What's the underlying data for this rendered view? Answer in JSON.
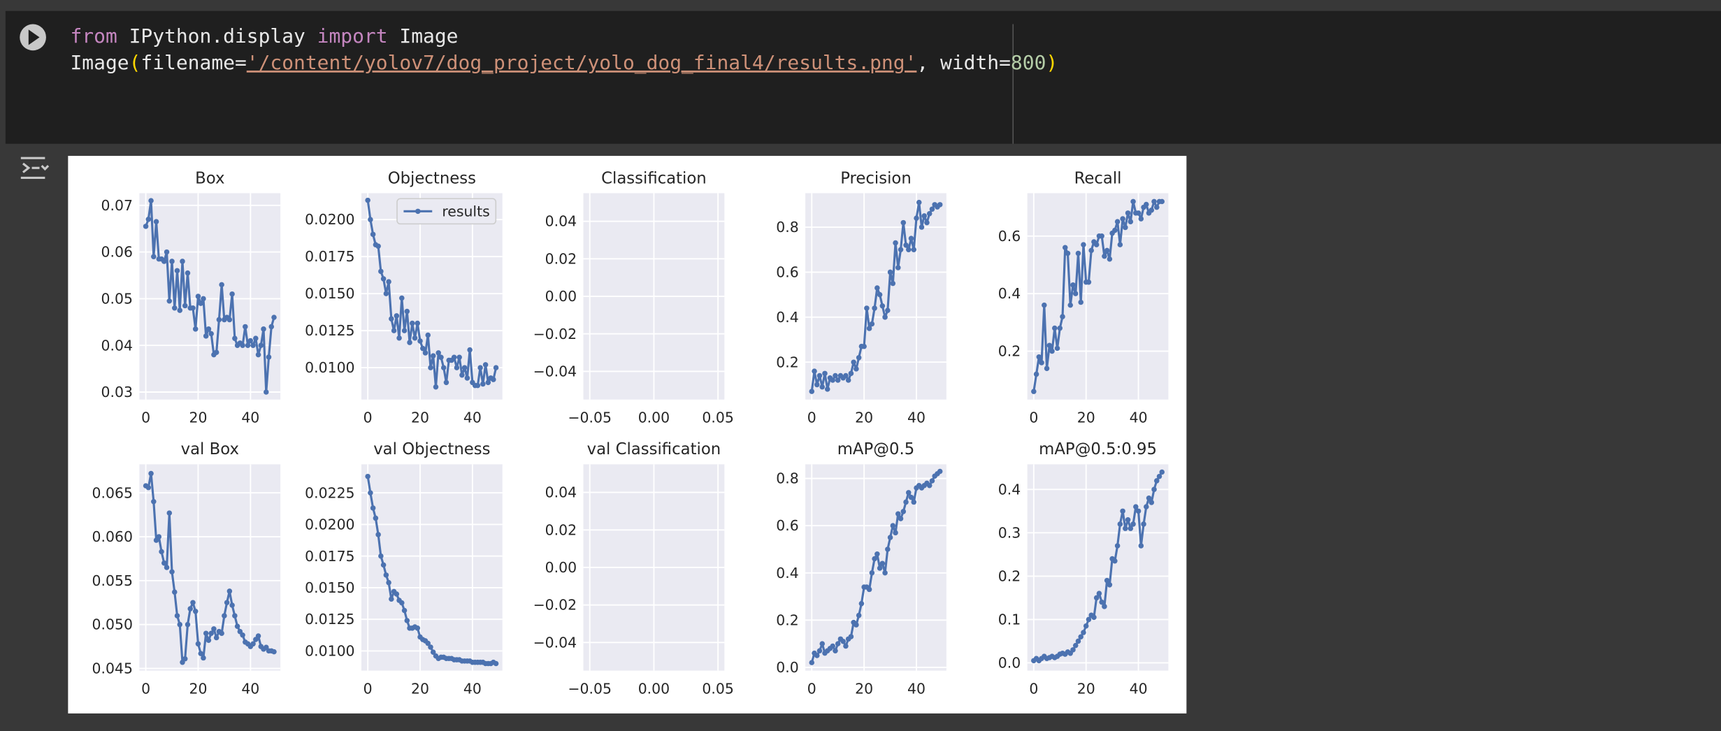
{
  "cell": {
    "code": [
      [
        "from",
        " IPython.display ",
        "import",
        " Image"
      ],
      [
        "Image",
        "(",
        "filename=",
        "'/content/yolov7/dog_project/yolo_dog_final4/results.png'",
        ", width=",
        "800",
        ")"
      ]
    ]
  },
  "chart_data": [
    {
      "type": "line",
      "title": "Box",
      "color": "#4c72b0",
      "grid": true,
      "x": [
        0,
        1,
        2,
        3,
        4,
        5,
        6,
        7,
        8,
        9,
        10,
        11,
        12,
        13,
        14,
        15,
        16,
        17,
        18,
        19,
        20,
        21,
        22,
        23,
        24,
        25,
        26,
        27,
        28,
        29,
        30,
        31,
        32,
        33,
        34,
        35,
        36,
        37,
        38,
        39,
        40,
        41,
        42,
        43,
        44,
        45,
        46,
        47,
        48,
        49
      ],
      "values": [
        0.0655,
        0.067,
        0.071,
        0.059,
        0.0665,
        0.0585,
        0.0585,
        0.058,
        0.06,
        0.0495,
        0.058,
        0.048,
        0.056,
        0.0475,
        0.058,
        0.0485,
        0.0555,
        0.048,
        0.048,
        0.0435,
        0.0505,
        0.049,
        0.05,
        0.042,
        0.0435,
        0.0425,
        0.038,
        0.0385,
        0.0455,
        0.053,
        0.0455,
        0.046,
        0.0455,
        0.051,
        0.0415,
        0.04,
        0.0405,
        0.04,
        0.044,
        0.04,
        0.041,
        0.04,
        0.0415,
        0.038,
        0.04,
        0.0435,
        0.03,
        0.0375,
        0.044,
        0.046
      ],
      "xlim": [
        -2.45,
        51.45
      ],
      "xticks": [
        0,
        20,
        40
      ],
      "ylim": [
        0.0284,
        0.0726
      ],
      "yticks": [
        0.03,
        0.04,
        0.05,
        0.06,
        0.07
      ]
    },
    {
      "type": "line",
      "title": "Objectness",
      "color": "#4c72b0",
      "grid": true,
      "legend": {
        "label": "results",
        "loc": "upper right"
      },
      "x": [
        0,
        1,
        2,
        3,
        4,
        5,
        6,
        7,
        8,
        9,
        10,
        11,
        12,
        13,
        14,
        15,
        16,
        17,
        18,
        19,
        20,
        21,
        22,
        23,
        24,
        25,
        26,
        27,
        28,
        29,
        30,
        31,
        32,
        33,
        34,
        35,
        36,
        37,
        38,
        39,
        40,
        41,
        42,
        43,
        44,
        45,
        46,
        47,
        48,
        49
      ],
      "values": [
        0.0213,
        0.02,
        0.019,
        0.0183,
        0.0182,
        0.0165,
        0.016,
        0.015,
        0.0158,
        0.0133,
        0.0125,
        0.0135,
        0.012,
        0.0147,
        0.0125,
        0.0138,
        0.0117,
        0.013,
        0.012,
        0.013,
        0.0118,
        0.0113,
        0.011,
        0.0122,
        0.01,
        0.0108,
        0.0087,
        0.011,
        0.0107,
        0.01,
        0.009,
        0.0105,
        0.0105,
        0.0107,
        0.01,
        0.0107,
        0.0095,
        0.01,
        0.0093,
        0.0112,
        0.009,
        0.0088,
        0.0088,
        0.01,
        0.0089,
        0.0102,
        0.009,
        0.0093,
        0.0092,
        0.01
      ],
      "xlim": [
        -2.45,
        51.45
      ],
      "xticks": [
        0,
        20,
        40
      ],
      "ylim": [
        0.00785,
        0.02178
      ],
      "yticks": [
        {
          "value": 0.01,
          "label": "0.0100"
        },
        0.0125,
        {
          "value": 0.015,
          "label": "0.0150"
        },
        0.0175,
        {
          "value": 0.02,
          "label": "0.0200"
        }
      ]
    },
    {
      "type": "line",
      "title": "Classification",
      "color": "#4c72b0",
      "grid": true,
      "xlim": [
        -0.055,
        0.055
      ],
      "xticks": [
        {
          "value": -0.05,
          "label": "−0.05"
        },
        {
          "value": 0,
          "label": "0.00"
        },
        0.05
      ],
      "ylim": [
        -0.055,
        0.055
      ],
      "yticks": [
        {
          "value": -0.04,
          "label": "−0.04"
        },
        {
          "value": -0.02,
          "label": "−0.02"
        },
        {
          "value": 0,
          "label": "0.00"
        },
        0.02,
        0.04
      ]
    },
    {
      "type": "line",
      "title": "Precision",
      "color": "#4c72b0",
      "grid": true,
      "x": [
        0,
        1,
        2,
        3,
        4,
        5,
        6,
        7,
        8,
        9,
        10,
        11,
        12,
        13,
        14,
        15,
        16,
        17,
        18,
        19,
        20,
        21,
        22,
        23,
        24,
        25,
        26,
        27,
        28,
        29,
        30,
        31,
        32,
        33,
        34,
        35,
        36,
        37,
        38,
        39,
        40,
        41,
        42,
        43,
        44,
        45,
        46,
        47,
        48,
        49
      ],
      "values": [
        0.07,
        0.16,
        0.1,
        0.14,
        0.09,
        0.15,
        0.08,
        0.13,
        0.12,
        0.14,
        0.12,
        0.14,
        0.13,
        0.14,
        0.12,
        0.15,
        0.2,
        0.17,
        0.22,
        0.27,
        0.27,
        0.44,
        0.35,
        0.37,
        0.44,
        0.53,
        0.5,
        0.45,
        0.4,
        0.43,
        0.6,
        0.55,
        0.73,
        0.62,
        0.7,
        0.82,
        0.72,
        0.7,
        0.75,
        0.7,
        0.84,
        0.91,
        0.8,
        0.85,
        0.82,
        0.86,
        0.88,
        0.9,
        0.89,
        0.9
      ],
      "xlim": [
        -2.45,
        51.45
      ],
      "xticks": [
        0,
        20,
        40
      ],
      "ylim": [
        0.034,
        0.951
      ],
      "yticks": [
        0.2,
        0.4,
        0.6,
        0.8
      ]
    },
    {
      "type": "line",
      "title": "Recall",
      "color": "#4c72b0",
      "grid": true,
      "x": [
        0,
        1,
        2,
        3,
        4,
        5,
        6,
        7,
        8,
        9,
        10,
        11,
        12,
        13,
        14,
        15,
        16,
        17,
        18,
        19,
        20,
        21,
        22,
        23,
        24,
        25,
        26,
        27,
        28,
        29,
        30,
        31,
        32,
        33,
        34,
        35,
        36,
        37,
        38,
        39,
        40,
        41,
        42,
        43,
        44,
        45,
        46,
        47,
        48,
        49
      ],
      "values": [
        0.06,
        0.12,
        0.18,
        0.16,
        0.36,
        0.14,
        0.22,
        0.2,
        0.28,
        0.21,
        0.28,
        0.32,
        0.56,
        0.54,
        0.36,
        0.43,
        0.4,
        0.54,
        0.37,
        0.57,
        0.44,
        0.44,
        0.55,
        0.58,
        0.57,
        0.6,
        0.6,
        0.53,
        0.55,
        0.52,
        0.61,
        0.62,
        0.65,
        0.57,
        0.66,
        0.63,
        0.68,
        0.65,
        0.72,
        0.68,
        0.68,
        0.66,
        0.7,
        0.71,
        0.68,
        0.69,
        0.72,
        0.7,
        0.72,
        0.72
      ],
      "xlim": [
        -2.45,
        51.45
      ],
      "xticks": [
        0,
        20,
        40
      ],
      "ylim": [
        0.032,
        0.749
      ],
      "yticks": [
        0.2,
        0.4,
        0.6
      ]
    },
    {
      "type": "line",
      "title": "val Box",
      "color": "#4c72b0",
      "grid": true,
      "x": [
        0,
        1,
        2,
        3,
        4,
        5,
        6,
        7,
        8,
        9,
        10,
        11,
        12,
        13,
        14,
        15,
        16,
        17,
        18,
        19,
        20,
        21,
        22,
        23,
        24,
        25,
        26,
        27,
        28,
        29,
        30,
        31,
        32,
        33,
        34,
        35,
        36,
        37,
        38,
        39,
        40,
        41,
        42,
        43,
        44,
        45,
        46,
        47,
        48,
        49
      ],
      "values": [
        0.0658,
        0.0656,
        0.0672,
        0.064,
        0.0596,
        0.06,
        0.0583,
        0.057,
        0.0565,
        0.0627,
        0.056,
        0.0537,
        0.051,
        0.05,
        0.0457,
        0.0461,
        0.05,
        0.0518,
        0.0525,
        0.0515,
        0.0478,
        0.0467,
        0.0462,
        0.049,
        0.0482,
        0.049,
        0.0495,
        0.0485,
        0.0492,
        0.049,
        0.051,
        0.0525,
        0.0538,
        0.0522,
        0.051,
        0.0498,
        0.0492,
        0.0488,
        0.048,
        0.0478,
        0.0475,
        0.0478,
        0.0483,
        0.0487,
        0.0475,
        0.0472,
        0.0474,
        0.047,
        0.047,
        0.0469
      ],
      "xlim": [
        -2.45,
        51.45
      ],
      "xticks": [
        0,
        20,
        40
      ],
      "ylim": [
        0.04475,
        0.06825
      ],
      "yticks": [
        0.045,
        {
          "value": 0.05,
          "label": "0.050"
        },
        0.055,
        {
          "value": 0.06,
          "label": "0.060"
        },
        0.065
      ]
    },
    {
      "type": "line",
      "title": "val Objectness",
      "color": "#4c72b0",
      "grid": true,
      "x": [
        0,
        1,
        2,
        3,
        4,
        5,
        6,
        7,
        8,
        9,
        10,
        11,
        12,
        13,
        14,
        15,
        16,
        17,
        18,
        19,
        20,
        21,
        22,
        23,
        24,
        25,
        26,
        27,
        28,
        29,
        30,
        31,
        32,
        33,
        34,
        35,
        36,
        37,
        38,
        39,
        40,
        41,
        42,
        43,
        44,
        45,
        46,
        47,
        48,
        49
      ],
      "values": [
        0.0238,
        0.0225,
        0.0213,
        0.0205,
        0.0192,
        0.0175,
        0.0168,
        0.016,
        0.0154,
        0.0141,
        0.0147,
        0.0145,
        0.014,
        0.0138,
        0.0132,
        0.0124,
        0.0118,
        0.0118,
        0.0119,
        0.0118,
        0.0111,
        0.0109,
        0.0108,
        0.0106,
        0.0103,
        0.0099,
        0.0096,
        0.0094,
        0.0095,
        0.0095,
        0.0094,
        0.0094,
        0.0094,
        0.0093,
        0.0093,
        0.0093,
        0.0092,
        0.0092,
        0.0092,
        0.0092,
        0.0091,
        0.0091,
        0.0091,
        0.0091,
        0.0091,
        0.009,
        0.009,
        0.009,
        0.0091,
        0.009
      ],
      "xlim": [
        -2.45,
        51.45
      ],
      "xticks": [
        0,
        20,
        40
      ],
      "ylim": [
        0.00844,
        0.02476
      ],
      "yticks": [
        {
          "value": 0.01,
          "label": "0.0100"
        },
        0.0125,
        {
          "value": 0.015,
          "label": "0.0150"
        },
        0.0175,
        {
          "value": 0.02,
          "label": "0.0200"
        },
        0.0225
      ]
    },
    {
      "type": "line",
      "title": "val Classification",
      "color": "#4c72b0",
      "grid": true,
      "xlim": [
        -0.055,
        0.055
      ],
      "xticks": [
        {
          "value": -0.05,
          "label": "−0.05"
        },
        {
          "value": 0,
          "label": "0.00"
        },
        0.05
      ],
      "ylim": [
        -0.055,
        0.055
      ],
      "yticks": [
        {
          "value": -0.04,
          "label": "−0.04"
        },
        {
          "value": -0.02,
          "label": "−0.02"
        },
        {
          "value": 0,
          "label": "0.00"
        },
        0.02,
        0.04
      ]
    },
    {
      "type": "line",
      "title": "mAP@0.5",
      "color": "#4c72b0",
      "grid": true,
      "x": [
        0,
        1,
        2,
        3,
        4,
        5,
        6,
        7,
        8,
        9,
        10,
        11,
        12,
        13,
        14,
        15,
        16,
        17,
        18,
        19,
        20,
        21,
        22,
        23,
        24,
        25,
        26,
        27,
        28,
        29,
        30,
        31,
        32,
        33,
        34,
        35,
        36,
        37,
        38,
        39,
        40,
        41,
        42,
        43,
        44,
        45,
        46,
        47,
        48,
        49
      ],
      "values": [
        0.02,
        0.06,
        0.05,
        0.07,
        0.1,
        0.06,
        0.07,
        0.08,
        0.09,
        0.07,
        0.1,
        0.12,
        0.11,
        0.09,
        0.12,
        0.13,
        0.19,
        0.18,
        0.22,
        0.27,
        0.34,
        0.34,
        0.33,
        0.4,
        0.46,
        0.48,
        0.42,
        0.44,
        0.4,
        0.5,
        0.55,
        0.6,
        0.57,
        0.65,
        0.63,
        0.66,
        0.7,
        0.74,
        0.72,
        0.7,
        0.76,
        0.77,
        0.76,
        0.77,
        0.78,
        0.77,
        0.79,
        0.81,
        0.82,
        0.83
      ],
      "xlim": [
        -2.45,
        51.45
      ],
      "xticks": [
        0,
        20,
        40
      ],
      "ylim": [
        -0.014,
        0.86
      ],
      "yticks": [
        {
          "value": 0,
          "label": "0.0"
        },
        0.2,
        0.4,
        0.6,
        0.8
      ]
    },
    {
      "type": "line",
      "title": "mAP@0.5:0.95",
      "color": "#4c72b0",
      "grid": true,
      "x": [
        0,
        1,
        2,
        3,
        4,
        5,
        6,
        7,
        8,
        9,
        10,
        11,
        12,
        13,
        14,
        15,
        16,
        17,
        18,
        19,
        20,
        21,
        22,
        23,
        24,
        25,
        26,
        27,
        28,
        29,
        30,
        31,
        32,
        33,
        34,
        35,
        36,
        37,
        38,
        39,
        40,
        41,
        42,
        43,
        44,
        45,
        46,
        47,
        48,
        49
      ],
      "values": [
        0.005,
        0.01,
        0.005,
        0.01,
        0.015,
        0.01,
        0.012,
        0.015,
        0.012,
        0.015,
        0.02,
        0.022,
        0.02,
        0.025,
        0.022,
        0.03,
        0.04,
        0.05,
        0.06,
        0.07,
        0.085,
        0.1,
        0.11,
        0.105,
        0.15,
        0.16,
        0.14,
        0.13,
        0.19,
        0.18,
        0.24,
        0.235,
        0.27,
        0.32,
        0.35,
        0.31,
        0.33,
        0.31,
        0.32,
        0.36,
        0.35,
        0.27,
        0.32,
        0.36,
        0.38,
        0.37,
        0.4,
        0.42,
        0.43,
        0.44
      ],
      "xlim": [
        -2.45,
        51.45
      ],
      "xticks": [
        0,
        20,
        40
      ],
      "ylim": [
        -0.018,
        0.458
      ],
      "yticks": [
        {
          "value": 0,
          "label": "0.0"
        },
        0.1,
        0.2,
        0.3,
        0.4
      ]
    }
  ]
}
